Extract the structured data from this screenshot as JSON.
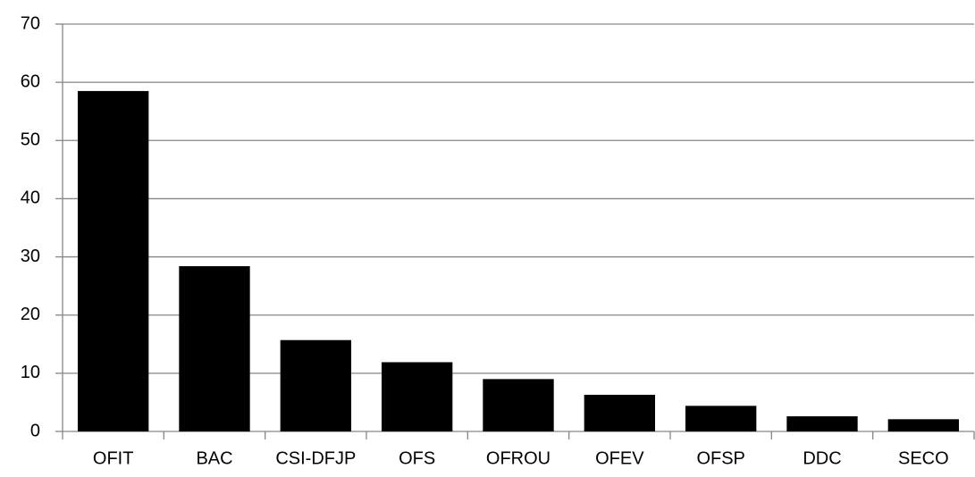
{
  "chart_data": {
    "type": "bar",
    "categories": [
      "OFIT",
      "BAC",
      "CSI-DFJP",
      "OFS",
      "OFROU",
      "OFEV",
      "OFSP",
      "DDC",
      "SECO"
    ],
    "values": [
      58.5,
      28.4,
      15.7,
      11.9,
      9.0,
      6.3,
      4.4,
      2.6,
      2.1
    ],
    "color": "#000000",
    "ylim": [
      0,
      70
    ],
    "yticks": [
      0,
      10,
      20,
      30,
      40,
      50,
      60,
      70
    ],
    "grid": true
  }
}
